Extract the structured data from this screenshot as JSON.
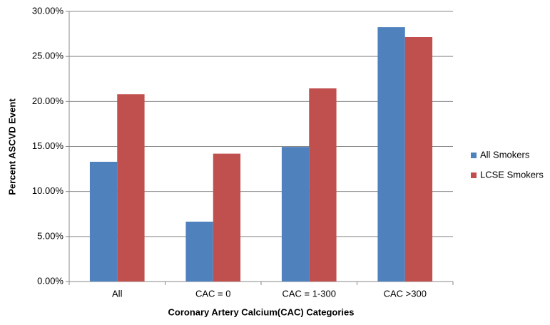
{
  "chart_data": {
    "type": "bar",
    "x_label": "Coronary Artery Calcium(CAC) Categories",
    "y_label": "Percent ASCVD Event",
    "categories": [
      "All",
      "CAC = 0",
      "CAC = 1-300",
      "CAC >300"
    ],
    "series": [
      {
        "name": "All Smokers",
        "color": "#4f81bd",
        "values": [
          13.3,
          6.65,
          14.95,
          28.25
        ]
      },
      {
        "name": "LCSE Smokers",
        "color": "#c0504d",
        "values": [
          20.8,
          14.2,
          21.45,
          27.15
        ]
      }
    ],
    "ylim": [
      0,
      30
    ],
    "yticks": [
      {
        "value": 0,
        "label": "0.00%"
      },
      {
        "value": 5,
        "label": "5.00%"
      },
      {
        "value": 10,
        "label": "10.00%"
      },
      {
        "value": 15,
        "label": "15.00%"
      },
      {
        "value": 20,
        "label": "20.00%"
      },
      {
        "value": 25,
        "label": "25.00%"
      },
      {
        "value": 30,
        "label": "30.00%"
      }
    ],
    "grid": true,
    "legend": "right"
  }
}
